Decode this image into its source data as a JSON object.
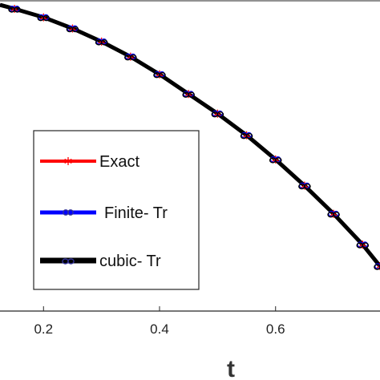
{
  "chart_data": {
    "type": "line",
    "title": "",
    "xlabel": "t",
    "ylabel": "",
    "xlim": [
      0.125,
      0.78
    ],
    "ylim": [
      0.05,
      1.0
    ],
    "x_ticks": [
      0.2,
      0.4,
      0.6
    ],
    "x_tick_labels": [
      "0.2",
      "0.4",
      "0.6"
    ],
    "legend_position": "left",
    "series": [
      {
        "name": "Exact",
        "color": "#ff0000",
        "marker": "asterisk",
        "x": [
          0.15,
          0.2,
          0.25,
          0.3,
          0.35,
          0.4,
          0.45,
          0.5,
          0.55,
          0.6,
          0.65,
          0.7,
          0.75,
          0.78
        ],
        "y": [
          0.973,
          0.947,
          0.913,
          0.873,
          0.827,
          0.773,
          0.713,
          0.653,
          0.587,
          0.513,
          0.433,
          0.347,
          0.253,
          0.187
        ]
      },
      {
        "name": "Finite- Tr",
        "color": "#0000ff",
        "marker": "circle",
        "x": [
          0.15,
          0.2,
          0.25,
          0.3,
          0.35,
          0.4,
          0.45,
          0.5,
          0.55,
          0.6,
          0.65,
          0.7,
          0.75,
          0.78
        ],
        "y": [
          0.973,
          0.947,
          0.913,
          0.873,
          0.827,
          0.773,
          0.713,
          0.653,
          0.587,
          0.513,
          0.433,
          0.347,
          0.253,
          0.187
        ]
      },
      {
        "name": "cubic- Tr",
        "color": "#000000",
        "marker": "infinity",
        "x": [
          0.15,
          0.2,
          0.25,
          0.3,
          0.35,
          0.4,
          0.45,
          0.5,
          0.55,
          0.6,
          0.65,
          0.7,
          0.75,
          0.78
        ],
        "y": [
          0.973,
          0.947,
          0.913,
          0.873,
          0.827,
          0.773,
          0.713,
          0.653,
          0.587,
          0.513,
          0.433,
          0.347,
          0.253,
          0.187
        ]
      }
    ]
  }
}
